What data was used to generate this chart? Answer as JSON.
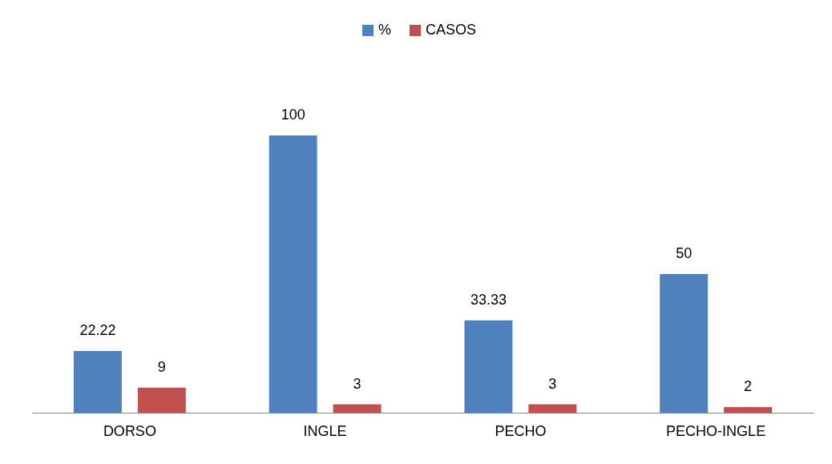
{
  "chart_data": {
    "type": "bar",
    "categories": [
      "DORSO",
      "INGLE",
      "PECHO",
      "PECHO-INGLE"
    ],
    "series": [
      {
        "name": "%",
        "color": "#4f81bd",
        "values": [
          22.22,
          100,
          33.33,
          50
        ]
      },
      {
        "name": "CASOS",
        "color": "#c0504d",
        "values": [
          9,
          3,
          3,
          2
        ]
      }
    ],
    "data_labels": true,
    "legend": "top",
    "grid": false
  }
}
